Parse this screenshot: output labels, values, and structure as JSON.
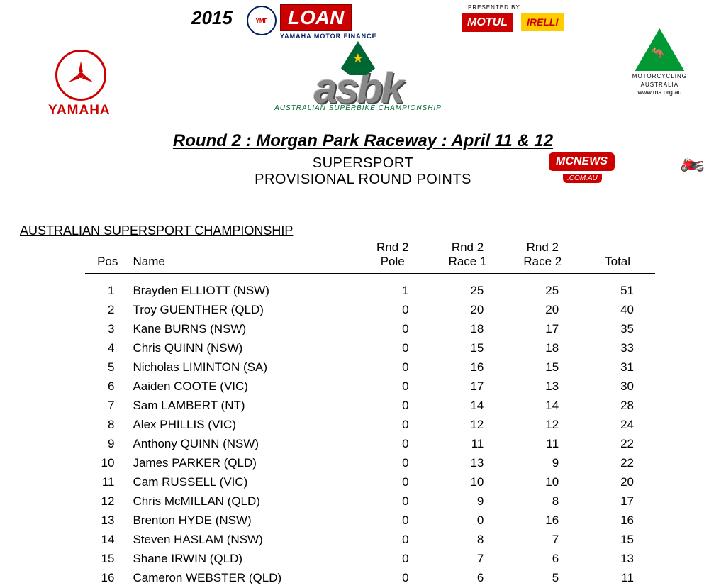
{
  "header": {
    "year": "2015",
    "loan_word": "LOAN",
    "loan_sub": "YAMAHA MOTOR FINANCE",
    "ymf_label": "YMF",
    "presented": "PRESENTED BY",
    "motul": "MOTUL",
    "pirelli": "IRELLI",
    "yamaha_text": "YAMAHA",
    "asbk_word": "asbk",
    "asbk_sub": "AUSTRALIAN SUPERBIKE CHAMPIONSHIP",
    "ma_text1": "MOTORCYCLING",
    "ma_text2": "AUSTRALIA",
    "ma_url": "www.ma.org.au"
  },
  "titles": {
    "round": "Round 2 : Morgan Park Raceway : April 11 & 12",
    "category": "SUPERSPORT",
    "subtitle": "PROVISIONAL ROUND POINTS",
    "championship": "AUSTRALIAN SUPERSPORT CHAMPIONSHIP",
    "mcnews": "MCNEWS",
    "mcnews_sub": ".COM.AU"
  },
  "columns": {
    "pos": "Pos",
    "name": "Name",
    "pole_l1": "Rnd 2",
    "pole_l2": "Pole",
    "r1_l1": "Rnd 2",
    "r1_l2": "Race 1",
    "r2_l1": "Rnd 2",
    "r2_l2": "Race 2",
    "total": "Total"
  },
  "rows": [
    {
      "pos": "1",
      "name": "Brayden ELLIOTT (NSW)",
      "pole": "1",
      "r1": "25",
      "r2": "25",
      "total": "51"
    },
    {
      "pos": "2",
      "name": "Troy GUENTHER (QLD)",
      "pole": "0",
      "r1": "20",
      "r2": "20",
      "total": "40"
    },
    {
      "pos": "3",
      "name": "Kane BURNS (NSW)",
      "pole": "0",
      "r1": "18",
      "r2": "17",
      "total": "35"
    },
    {
      "pos": "4",
      "name": "Chris QUINN (NSW)",
      "pole": "0",
      "r1": "15",
      "r2": "18",
      "total": "33"
    },
    {
      "pos": "5",
      "name": "Nicholas LIMINTON (SA)",
      "pole": "0",
      "r1": "16",
      "r2": "15",
      "total": "31"
    },
    {
      "pos": "6",
      "name": "Aaiden COOTE (VIC)",
      "pole": "0",
      "r1": "17",
      "r2": "13",
      "total": "30"
    },
    {
      "pos": "7",
      "name": "Sam  LAMBERT (NT)",
      "pole": "0",
      "r1": "14",
      "r2": "14",
      "total": "28"
    },
    {
      "pos": "8",
      "name": "Alex PHILLIS (VIC)",
      "pole": "0",
      "r1": "12",
      "r2": "12",
      "total": "24"
    },
    {
      "pos": "9",
      "name": "Anthony QUINN (NSW)",
      "pole": "0",
      "r1": "11",
      "r2": "11",
      "total": "22"
    },
    {
      "pos": "10",
      "name": "James PARKER (QLD)",
      "pole": "0",
      "r1": "13",
      "r2": "9",
      "total": "22"
    },
    {
      "pos": "11",
      "name": "Cam RUSSELL (VIC)",
      "pole": "0",
      "r1": "10",
      "r2": "10",
      "total": "20"
    },
    {
      "pos": "12",
      "name": "Chris McMILLAN (QLD)",
      "pole": "0",
      "r1": "9",
      "r2": "8",
      "total": "17"
    },
    {
      "pos": "13",
      "name": "Brenton HYDE (NSW)",
      "pole": "0",
      "r1": "0",
      "r2": "16",
      "total": "16"
    },
    {
      "pos": "14",
      "name": "Steven HASLAM (NSW)",
      "pole": "0",
      "r1": "8",
      "r2": "7",
      "total": "15"
    },
    {
      "pos": "15",
      "name": "Shane  IRWIN (QLD)",
      "pole": "0",
      "r1": "7",
      "r2": "6",
      "total": "13"
    },
    {
      "pos": "16",
      "name": "Cameron WEBSTER (QLD)",
      "pole": "0",
      "r1": "6",
      "r2": "5",
      "total": "11"
    }
  ],
  "colors": {
    "red": "#cc0000",
    "green": "#009933",
    "yellow": "#ffcc00",
    "navy": "#002060",
    "grey": "#888888"
  }
}
